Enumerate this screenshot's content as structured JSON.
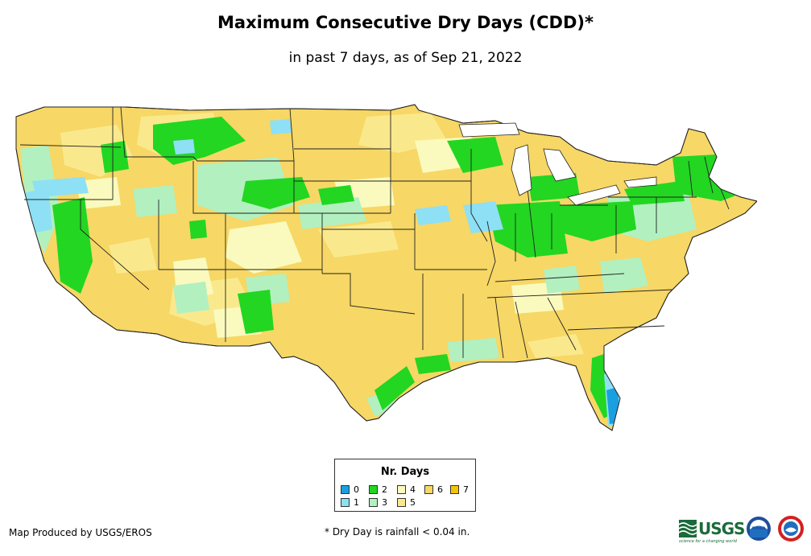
{
  "title": "Maximum Consecutive Dry Days (CDD)*",
  "subtitle": "in past 7 days, as of Sep 21, 2022",
  "legend": {
    "title": "Nr. Days",
    "items": [
      {
        "label": "0",
        "color": "#1a9fe0"
      },
      {
        "label": "1",
        "color": "#8ee0f5"
      },
      {
        "label": "2",
        "color": "#22d622"
      },
      {
        "label": "3",
        "color": "#b2f0c0"
      },
      {
        "label": "4",
        "color": "#fafabe"
      },
      {
        "label": "5",
        "color": "#fae98c"
      },
      {
        "label": "6",
        "color": "#f7d765"
      },
      {
        "label": "7",
        "color": "#f5c400"
      }
    ]
  },
  "footer": {
    "producer": "Map Produced by USGS/EROS",
    "footnote": "* Dry Day is rainfall < 0.04 in."
  },
  "logos": {
    "usgs": "USGS",
    "usgs_tagline": "science for a changing world",
    "noaa": "noaa"
  }
}
